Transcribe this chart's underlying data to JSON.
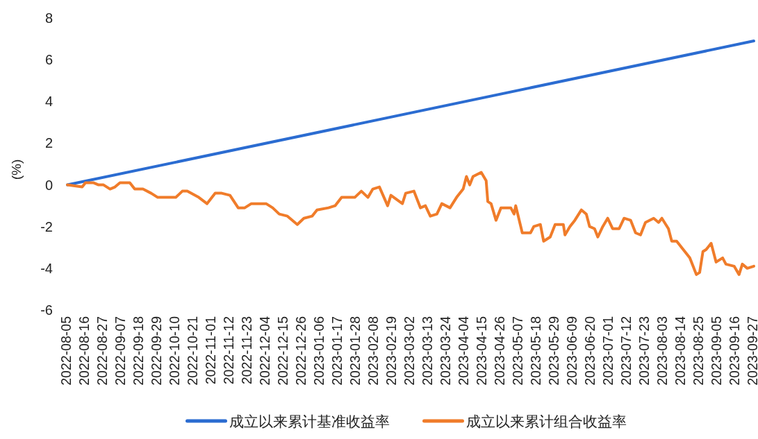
{
  "chart_data": {
    "type": "line",
    "ylabel": "(%)",
    "xlim": [
      "2022-08-05",
      "2023-09-27"
    ],
    "ylim": [
      -6,
      8
    ],
    "yticks": [
      -6,
      -4,
      -2,
      0,
      2,
      4,
      6,
      8
    ],
    "xticks": [
      "2022-08-05",
      "2022-08-16",
      "2022-08-27",
      "2022-09-07",
      "2022-09-18",
      "2022-09-29",
      "2022-10-10",
      "2022-10-21",
      "2022-11-01",
      "2022-11-12",
      "2022-11-23",
      "2022-12-04",
      "2022-12-15",
      "2022-12-26",
      "2023-01-06",
      "2023-01-17",
      "2023-01-28",
      "2023-02-08",
      "2023-02-19",
      "2023-03-02",
      "2023-03-13",
      "2023-03-24",
      "2023-04-04",
      "2023-04-15",
      "2023-04-26",
      "2023-05-07",
      "2023-05-18",
      "2023-05-29",
      "2023-06-09",
      "2023-06-20",
      "2023-07-01",
      "2023-07-12",
      "2023-07-23",
      "2023-08-03",
      "2023-08-14",
      "2023-08-25",
      "2023-09-05",
      "2023-09-16",
      "2023-09-27"
    ],
    "legend": "bottom",
    "marker": "none",
    "series": [
      {
        "name": "成立以来累计基准收益率",
        "color": "#2b6cd1",
        "x": [
          "2022-08-05",
          "2023-09-27"
        ],
        "values": [
          0,
          6.9
        ]
      },
      {
        "name": "成立以来累计组合收益率",
        "color": "#f07c2a",
        "x": [
          "2022-08-05",
          "2022-08-14",
          "2022-08-16",
          "2022-08-21",
          "2022-08-24",
          "2022-08-27",
          "2022-08-31",
          "2022-09-03",
          "2022-09-06",
          "2022-09-12",
          "2022-09-15",
          "2022-09-20",
          "2022-09-25",
          "2022-09-29",
          "2022-10-10",
          "2022-10-14",
          "2022-10-17",
          "2022-10-24",
          "2022-10-29",
          "2022-11-03",
          "2022-11-07",
          "2022-11-12",
          "2022-11-17",
          "2022-11-21",
          "2022-11-25",
          "2022-12-04",
          "2022-12-08",
          "2022-12-12",
          "2022-12-17",
          "2022-12-23",
          "2022-12-27",
          "2023-01-01",
          "2023-01-04",
          "2023-01-11",
          "2023-01-15",
          "2023-01-19",
          "2023-01-27",
          "2023-01-31",
          "2023-02-04",
          "2023-02-07",
          "2023-02-11",
          "2023-02-16",
          "2023-02-18",
          "2023-02-25",
          "2023-02-27",
          "2023-03-04",
          "2023-03-08",
          "2023-03-11",
          "2023-03-14",
          "2023-03-18",
          "2023-03-21",
          "2023-03-26",
          "2023-03-30",
          "2023-04-03",
          "2023-04-05",
          "2023-04-07",
          "2023-04-09",
          "2023-04-14",
          "2023-04-17",
          "2023-04-18",
          "2023-04-20",
          "2023-04-23",
          "2023-04-26",
          "2023-05-02",
          "2023-05-04",
          "2023-05-05",
          "2023-05-09",
          "2023-05-14",
          "2023-05-16",
          "2023-05-20",
          "2023-05-22",
          "2023-05-26",
          "2023-05-29",
          "2023-06-03",
          "2023-06-04",
          "2023-06-07",
          "2023-06-10",
          "2023-06-14",
          "2023-06-17",
          "2023-06-19",
          "2023-06-22",
          "2023-06-24",
          "2023-06-27",
          "2023-06-30",
          "2023-07-03",
          "2023-07-07",
          "2023-07-10",
          "2023-07-14",
          "2023-07-17",
          "2023-07-20",
          "2023-07-23",
          "2023-07-28",
          "2023-07-31",
          "2023-08-02",
          "2023-08-06",
          "2023-08-08",
          "2023-08-11",
          "2023-08-15",
          "2023-08-19",
          "2023-08-21",
          "2023-08-23",
          "2023-08-25",
          "2023-08-27",
          "2023-08-29",
          "2023-09-01",
          "2023-09-04",
          "2023-09-08",
          "2023-09-10",
          "2023-09-15",
          "2023-09-18",
          "2023-09-20",
          "2023-09-23",
          "2023-09-27"
        ],
        "values": [
          0,
          -0.1,
          0.1,
          0.1,
          0,
          0,
          -0.2,
          -0.1,
          0.1,
          0.1,
          -0.2,
          -0.2,
          -0.4,
          -0.6,
          -0.6,
          -0.3,
          -0.3,
          -0.6,
          -0.9,
          -0.4,
          -0.4,
          -0.5,
          -1.1,
          -1.1,
          -0.9,
          -0.9,
          -1.1,
          -1.4,
          -1.5,
          -1.9,
          -1.6,
          -1.5,
          -1.2,
          -1.1,
          -1,
          -0.6,
          -0.6,
          -0.3,
          -0.6,
          -0.2,
          -0.1,
          -1,
          -0.5,
          -0.9,
          -0.4,
          -0.3,
          -1.1,
          -1,
          -1.5,
          -1.4,
          -0.9,
          -1.1,
          -0.6,
          -0.2,
          0.4,
          0,
          0.4,
          0.6,
          0.2,
          -0.8,
          -0.9,
          -1.7,
          -1.1,
          -1.1,
          -1.4,
          -1,
          -2.3,
          -2.3,
          -2,
          -1.9,
          -2.7,
          -2.5,
          -1.9,
          -1.9,
          -2.4,
          -2,
          -1.7,
          -1.2,
          -1.4,
          -2,
          -2.1,
          -2.5,
          -2,
          -1.6,
          -2.1,
          -2.1,
          -1.6,
          -1.7,
          -2.3,
          -2.4,
          -1.8,
          -1.6,
          -1.8,
          -1.6,
          -2.1,
          -2.7,
          -2.7,
          -3.1,
          -3.5,
          -3.9,
          -4.3,
          -4.2,
          -3.2,
          -3.1,
          -2.8,
          -3.7,
          -3.5,
          -3.8,
          -3.9,
          -4.3,
          -3.8,
          -4,
          -3.9
        ]
      }
    ]
  }
}
